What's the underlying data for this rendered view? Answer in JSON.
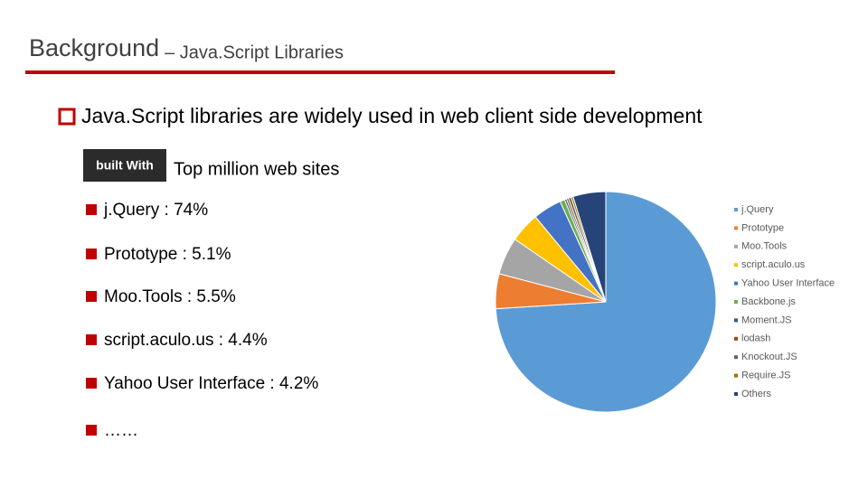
{
  "header": {
    "title": "Background",
    "subtitle": "– Java.Script Libraries"
  },
  "bullet": "Java.Script libraries are widely used in web client side development",
  "source": {
    "logo": "built With",
    "caption": "Top million web sites"
  },
  "items": [
    "j.Query :  74%",
    "Prototype : 5.1%",
    "Moo.Tools : 5.5%",
    "script.aculo.us : 4.4%",
    "Yahoo User Interface : 4.2%",
    "……"
  ],
  "chart_data": {
    "type": "pie",
    "categories": [
      "j.Query",
      "Prototype",
      "Moo.Tools",
      "script.aculo.us",
      "Yahoo User Interface",
      "Backbone.js",
      "Moment.JS",
      "lodash",
      "Knockout.JS",
      "Require.JS",
      "Others"
    ],
    "values": [
      74,
      5.1,
      5.5,
      4.4,
      4.2,
      0.7,
      0.3,
      0.3,
      0.4,
      0.3,
      4.8
    ],
    "colors": [
      "#5b9bd5",
      "#ed7d31",
      "#a5a5a5",
      "#ffc000",
      "#4472c4",
      "#70ad47",
      "#255e91",
      "#9e480e",
      "#636363",
      "#997300",
      "#264478"
    ],
    "legend": "right"
  }
}
